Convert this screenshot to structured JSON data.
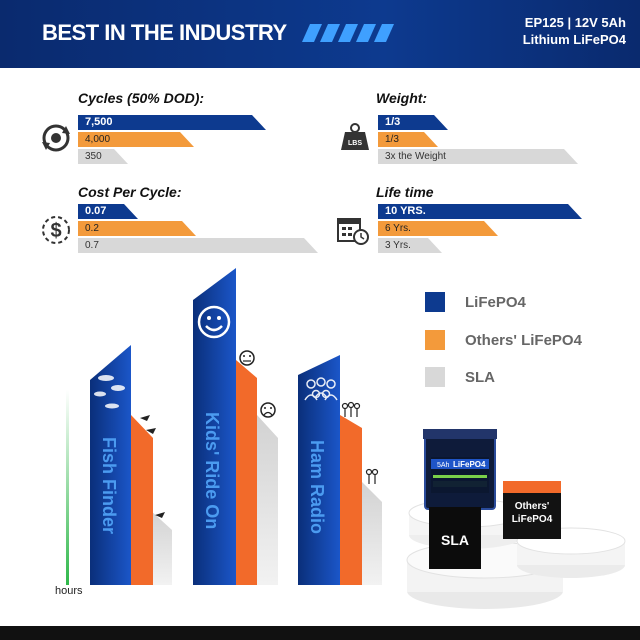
{
  "header": {
    "title": "BEST IN THE INDUSTRY",
    "model_line1": "EP125 | 12V 5Ah",
    "model_line2": "Lithium LiFePO4"
  },
  "stats": {
    "cycles": {
      "title": "Cycles (50% DOD):",
      "lifepo4": "7,500",
      "others": "4,000",
      "sla": "350"
    },
    "weight": {
      "title": "Weight:",
      "lifepo4": "1/3",
      "others": "1/3",
      "sla": "3x the Weight"
    },
    "cost": {
      "title": "Cost Per Cycle:",
      "lifepo4": "0.07",
      "others": "0.2",
      "sla": "0.7"
    },
    "lifetime": {
      "title": "Life time",
      "lifepo4": "10 YRS.",
      "others": "6 Yrs.",
      "sla": "3 Yrs."
    }
  },
  "legend": [
    {
      "label": "LiFePO4",
      "color": "#0d3a8f"
    },
    {
      "label": "Others' LiFePO4",
      "color": "#f39a3b"
    },
    {
      "label": "SLA",
      "color": "#d8d8d8"
    }
  ],
  "chart": {
    "axis_label": "hours",
    "applications": [
      "Fish Finder",
      "Kids' Ride On",
      "Ham Radio"
    ]
  },
  "icons": {
    "weight_icon_text": "LBS"
  },
  "product": {
    "battery_capacity": "5Ah",
    "battery_chem": "LiFePO4",
    "others_label_line1": "Others'",
    "others_label_line2": "LiFePO4",
    "sla_label": "SLA"
  },
  "colors": {
    "brand_blue": "#0d3a8f",
    "orange": "#f39a3b",
    "gray": "#d8d8d8"
  }
}
